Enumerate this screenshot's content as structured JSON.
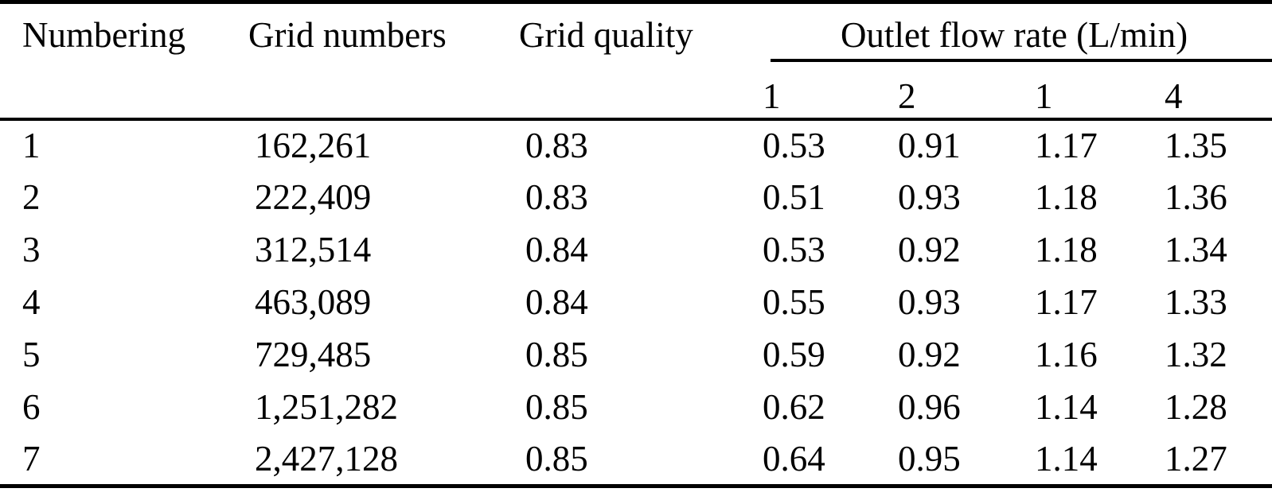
{
  "table": {
    "headers": [
      "Numbering",
      "Grid numbers",
      "Grid quality"
    ],
    "group_header": "Outlet flow rate (L/min)",
    "sub_headers": [
      "1",
      "2",
      "1",
      "4"
    ],
    "rows": [
      [
        "1",
        "162,261",
        "0.83",
        "0.53",
        "0.91",
        "1.17",
        "1.35"
      ],
      [
        "2",
        "222,409",
        "0.83",
        "0.51",
        "0.93",
        "1.18",
        "1.36"
      ],
      [
        "3",
        "312,514",
        "0.84",
        "0.53",
        "0.92",
        "1.18",
        "1.34"
      ],
      [
        "4",
        "463,089",
        "0.84",
        "0.55",
        "0.93",
        "1.17",
        "1.33"
      ],
      [
        "5",
        "729,485",
        "0.85",
        "0.59",
        "0.92",
        "1.16",
        "1.32"
      ],
      [
        "6",
        "1,251,282",
        "0.85",
        "0.62",
        "0.96",
        "1.14",
        "1.28"
      ],
      [
        "7",
        "2,427,128",
        "0.85",
        "0.64",
        "0.95",
        "1.14",
        "1.27"
      ]
    ],
    "colors": {
      "text": "#000000",
      "background": "#ffffff",
      "rule": "#000000"
    }
  },
  "chart_data": {
    "type": "table",
    "title": "",
    "group_header": "Outlet flow rate (L/min)",
    "columns": [
      "Numbering",
      "Grid numbers",
      "Grid quality",
      "Outlet flow rate (L/min) - 1",
      "Outlet flow rate (L/min) - 2",
      "Outlet flow rate (L/min) - 1",
      "Outlet flow rate (L/min) - 4"
    ],
    "rows": [
      [
        1,
        162261,
        0.83,
        0.53,
        0.91,
        1.17,
        1.35
      ],
      [
        2,
        222409,
        0.83,
        0.51,
        0.93,
        1.18,
        1.36
      ],
      [
        3,
        312514,
        0.84,
        0.53,
        0.92,
        1.18,
        1.34
      ],
      [
        4,
        463089,
        0.84,
        0.55,
        0.93,
        1.17,
        1.33
      ],
      [
        5,
        729485,
        0.85,
        0.59,
        0.92,
        1.16,
        1.32
      ],
      [
        6,
        1251282,
        0.85,
        0.62,
        0.96,
        1.14,
        1.28
      ],
      [
        7,
        2427128,
        0.85,
        0.64,
        0.95,
        1.14,
        1.27
      ]
    ]
  }
}
